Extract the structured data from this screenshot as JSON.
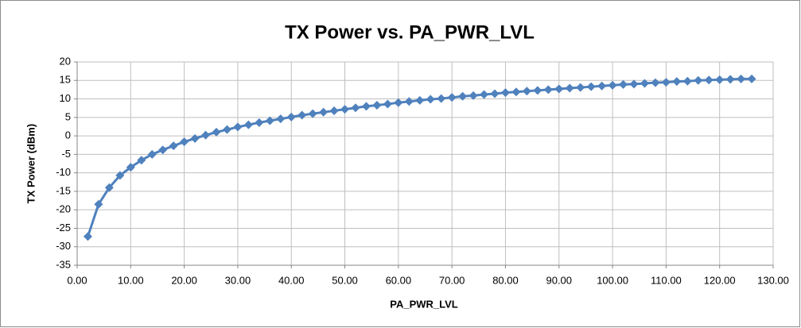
{
  "chart_data": {
    "type": "line",
    "title": "TX Power vs. PA_PWR_LVL",
    "x_label": "PA_PWR_LVL",
    "y_label": "TX Power (dBm)",
    "x": [
      2,
      4,
      6,
      8,
      10,
      12,
      14,
      16,
      18,
      20,
      22,
      24,
      26,
      28,
      30,
      32,
      34,
      36,
      38,
      40,
      42,
      44,
      46,
      48,
      50,
      52,
      54,
      56,
      58,
      60,
      62,
      64,
      66,
      68,
      70,
      72,
      74,
      76,
      78,
      80,
      82,
      84,
      86,
      88,
      90,
      92,
      94,
      96,
      98,
      100,
      102,
      104,
      106,
      108,
      110,
      112,
      114,
      116,
      118,
      120,
      122,
      124,
      126
    ],
    "series": [
      {
        "name": "TX Power",
        "color": "#4f81bd",
        "values": [
          -27.2,
          -18.5,
          -14,
          -10.7,
          -8.5,
          -6.6,
          -5,
          -3.8,
          -2.7,
          -1.6,
          -0.7,
          0.2,
          1,
          1.7,
          2.4,
          3,
          3.6,
          4.1,
          4.6,
          5.1,
          5.6,
          6,
          6.4,
          6.8,
          7.2,
          7.6,
          8,
          8.3,
          8.6,
          9,
          9.3,
          9.6,
          9.9,
          10.1,
          10.4,
          10.7,
          10.9,
          11.2,
          11.4,
          11.7,
          11.9,
          12.1,
          12.3,
          12.5,
          12.7,
          12.9,
          13.1,
          13.3,
          13.5,
          13.7,
          13.9,
          14,
          14.2,
          14.4,
          14.5,
          14.7,
          14.8,
          15,
          15.1,
          15.2,
          15.3,
          15.4,
          15.4
        ]
      }
    ],
    "xlim": [
      0,
      130
    ],
    "xticks": [
      {
        "value": 0,
        "label": "0.00"
      },
      {
        "value": 10,
        "label": "10.00"
      },
      {
        "value": 20,
        "label": "20.00"
      },
      {
        "value": 30,
        "label": "30.00"
      },
      {
        "value": 40,
        "label": "40.00"
      },
      {
        "value": 50,
        "label": "50.00"
      },
      {
        "value": 60,
        "label": "60.00"
      },
      {
        "value": 70,
        "label": "70.00"
      },
      {
        "value": 80,
        "label": "80.00"
      },
      {
        "value": 90,
        "label": "90.00"
      },
      {
        "value": 100,
        "label": "100.00"
      },
      {
        "value": 110,
        "label": "110.00"
      },
      {
        "value": 120,
        "label": "120.00"
      },
      {
        "value": 130,
        "label": "130.00"
      }
    ],
    "ylim": [
      -35,
      20
    ],
    "yticks": [
      -35,
      -30,
      -25,
      -20,
      -15,
      -10,
      -5,
      0,
      5,
      10,
      15,
      20
    ],
    "grid": true
  }
}
